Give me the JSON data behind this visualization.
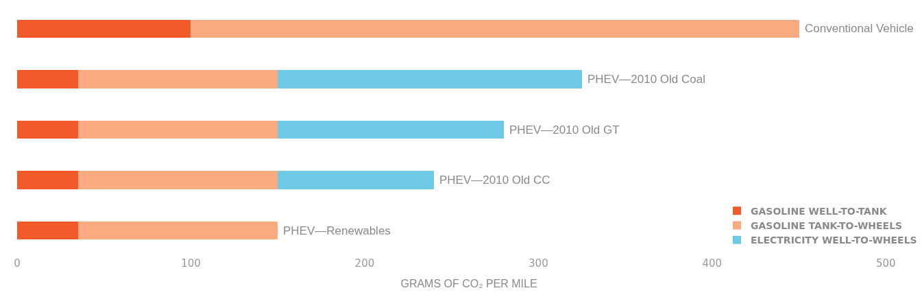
{
  "chart_data": {
    "type": "bar",
    "orientation": "horizontal",
    "stacked": true,
    "xlabel": "GRAMS OF CO₂ PER MILE",
    "categories": [
      "Conventional Vehicle",
      "PHEV—2010 Old Coal",
      "PHEV—2010 Old GT",
      "PHEV—2010 Old CC",
      "PHEV—Renewables"
    ],
    "series": [
      {
        "name": "GASOLINE WELL-TO-TANK",
        "color": "#f15a29",
        "values": [
          100,
          35,
          35,
          35,
          35
        ]
      },
      {
        "name": "GASOLINE TANK-TO-WHEELS",
        "color": "#f8aa80",
        "values": [
          350,
          115,
          115,
          115,
          115
        ]
      },
      {
        "name": "ELECTRICITY WELL-TO-WHEELS",
        "color": "#6ecae4",
        "values": [
          null,
          175,
          130,
          90,
          null
        ]
      }
    ],
    "xlim": [
      0,
      520
    ],
    "xticks": [
      0,
      100,
      200,
      300,
      400,
      500
    ],
    "tick_labels": "x",
    "legend": "bottom right"
  }
}
